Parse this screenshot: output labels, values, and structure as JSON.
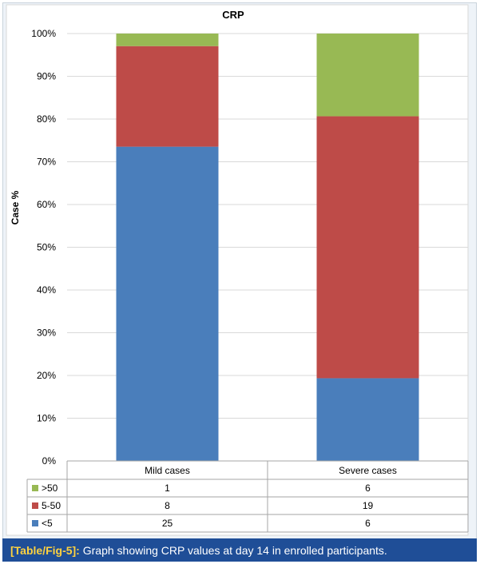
{
  "chart_data": {
    "type": "bar",
    "stacked": true,
    "percent_stacked": true,
    "title": "CRP",
    "ylabel": "Case %",
    "xlabel": "",
    "ylim": [
      0,
      100
    ],
    "yticks": [
      "0%",
      "10%",
      "20%",
      "30%",
      "40%",
      "50%",
      "60%",
      "70%",
      "80%",
      "90%",
      "100%"
    ],
    "categories": [
      "Mild cases",
      "Severe cases"
    ],
    "series": [
      {
        "name": "<5",
        "values": [
          25,
          6
        ],
        "color": "#4a7ebb"
      },
      {
        "name": "5-50",
        "values": [
          8,
          19
        ],
        "color": "#be4b48"
      },
      {
        "name": ">50",
        "values": [
          1,
          6
        ],
        "color": "#98b954"
      }
    ],
    "grid": true,
    "legend": "data table below axis"
  },
  "caption": {
    "label": "[Table/Fig-5]:",
    "text": "Graph showing CRP values at day 14 in enrolled participants."
  },
  "colors": {
    "caption_bar": "#1f4e97",
    "caption_label": "#ffd23f",
    "frame_bg": "#eef3f8"
  }
}
